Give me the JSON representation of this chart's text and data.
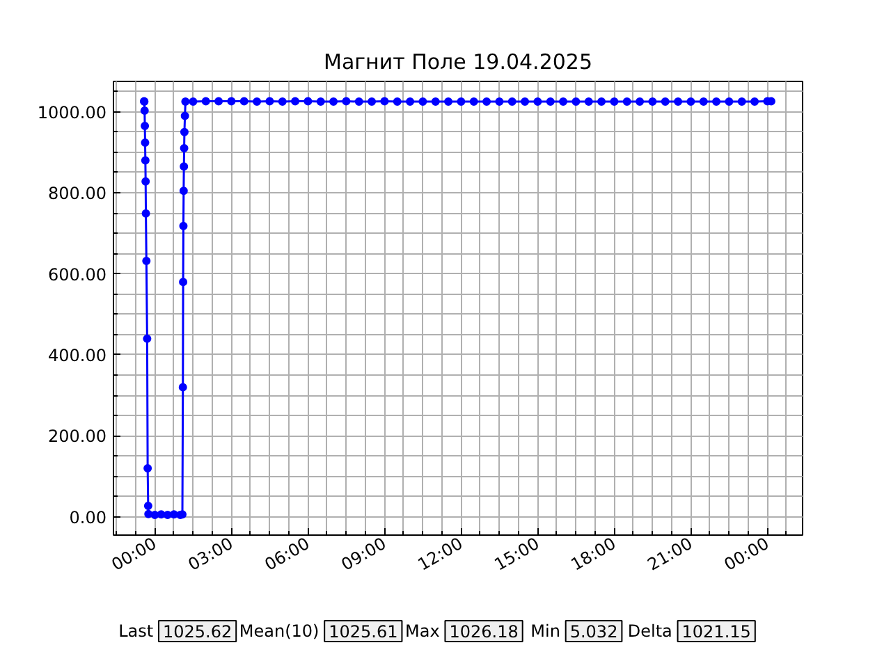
{
  "chart_data": {
    "type": "line",
    "title": "Магнит Поле 19.04.2025",
    "x": [
      -0.42,
      -0.41,
      -0.4,
      -0.39,
      -0.38,
      -0.37,
      -0.36,
      -0.35,
      -0.33,
      -0.3,
      -0.28,
      -0.26,
      -0.25,
      0,
      0.25,
      0.5,
      0.75,
      1.0,
      1.08,
      1.1,
      1.11,
      1.12,
      1.13,
      1.14,
      1.15,
      1.16,
      1.18,
      1.2,
      1.5,
      2,
      2.5,
      3,
      3.5,
      4,
      4.5,
      5,
      5.5,
      6,
      6.5,
      7,
      7.5,
      8,
      8.5,
      9,
      9.5,
      10,
      10.5,
      11,
      11.5,
      12,
      12.5,
      13,
      13.5,
      14,
      14.5,
      15,
      15.5,
      16,
      16.5,
      17,
      17.5,
      18,
      18.5,
      19,
      19.5,
      20,
      20.5,
      21,
      21.5,
      22,
      22.5,
      23,
      23.5,
      24,
      24.15
    ],
    "series": [
      {
        "color": "#0000ff",
        "values": [
          1026,
          1025,
          1003,
          965,
          924,
          880,
          828,
          749,
          632,
          440,
          120,
          27,
          7,
          5,
          6,
          5,
          6,
          5,
          6,
          320,
          580,
          718,
          805,
          865,
          910,
          950,
          990,
          1025,
          1025,
          1026,
          1026,
          1026,
          1026,
          1025,
          1026,
          1025,
          1026,
          1026,
          1025,
          1025,
          1026,
          1025,
          1025,
          1026,
          1025,
          1025,
          1025,
          1025,
          1025,
          1025,
          1025,
          1025,
          1025,
          1025,
          1025,
          1025,
          1025,
          1025,
          1025,
          1025,
          1025,
          1025,
          1025,
          1025,
          1025,
          1025,
          1025,
          1025,
          1025,
          1025,
          1025,
          1025,
          1025,
          1026,
          1026
        ]
      }
    ],
    "xlim": [
      -1.62,
      25.38
    ],
    "ylim": [
      -45,
      1075
    ],
    "xticks": [
      {
        "value": 0,
        "label": "00:00"
      },
      {
        "value": 3,
        "label": "03:00"
      },
      {
        "value": 6,
        "label": "06:00"
      },
      {
        "value": 9,
        "label": "09:00"
      },
      {
        "value": 12,
        "label": "12:00"
      },
      {
        "value": 15,
        "label": "15:00"
      },
      {
        "value": 18,
        "label": "18:00"
      },
      {
        "value": 21,
        "label": "21:00"
      },
      {
        "value": 24,
        "label": "00:00"
      }
    ],
    "yticks": [
      {
        "value": 0,
        "label": "0.00"
      },
      {
        "value": 200,
        "label": "200.00"
      },
      {
        "value": 400,
        "label": "400.00"
      },
      {
        "value": 600,
        "label": "600.00"
      },
      {
        "value": 800,
        "label": "800.00"
      },
      {
        "value": 1000,
        "label": "1000.00"
      }
    ],
    "grid": true,
    "marker": "circle",
    "line_style": "solid",
    "annotations": [
      "Last",
      "1025.62",
      "Mean(10)",
      "1025.61",
      "Max",
      "1026.18",
      "Min",
      "5.032",
      "Delta",
      "1021.15"
    ]
  }
}
